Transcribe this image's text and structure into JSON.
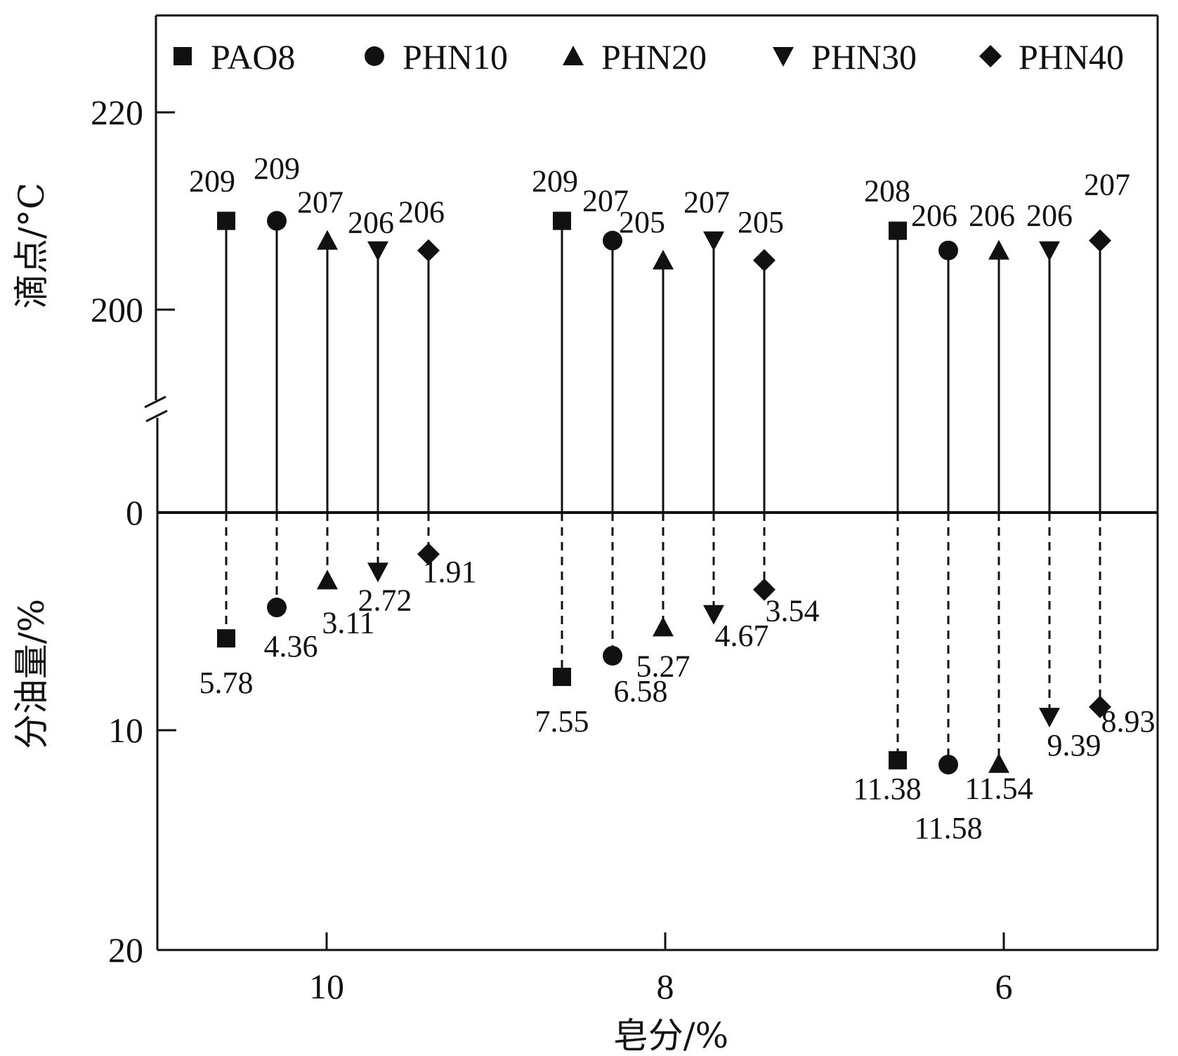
{
  "chart_data": {
    "type": "stem",
    "categories": [
      "10",
      "8",
      "6"
    ],
    "series": [
      {
        "name": "PAO8",
        "marker": "square",
        "dropping_point": [
          209,
          209,
          208
        ],
        "oil_separation": [
          5.78,
          7.55,
          11.38
        ]
      },
      {
        "name": "PHN10",
        "marker": "circle",
        "dropping_point": [
          209,
          207,
          206
        ],
        "oil_separation": [
          4.36,
          6.58,
          11.58
        ]
      },
      {
        "name": "PHN20",
        "marker": "triangle-up",
        "dropping_point": [
          207,
          205,
          206
        ],
        "oil_separation": [
          3.11,
          5.27,
          11.54
        ]
      },
      {
        "name": "PHN30",
        "marker": "triangle-down",
        "dropping_point": [
          206,
          207,
          206
        ],
        "oil_separation": [
          2.72,
          4.67,
          9.39
        ]
      },
      {
        "name": "PHN40",
        "marker": "diamond",
        "dropping_point": [
          206,
          205,
          207
        ],
        "oil_separation": [
          1.91,
          3.54,
          8.93
        ]
      }
    ],
    "dropping_point_labels": [
      [
        "209",
        "209",
        "208"
      ],
      [
        "209",
        "207",
        "206"
      ],
      [
        "207",
        "205",
        "206"
      ],
      [
        "206",
        "207",
        "206"
      ],
      [
        "206",
        "205",
        "207"
      ]
    ],
    "oil_separation_labels": [
      [
        "5.78",
        "7.55",
        "11.38"
      ],
      [
        "4.36",
        "6.58",
        "11.58"
      ],
      [
        "3.11",
        "5.27",
        "11.54"
      ],
      [
        "2.72",
        "4.67",
        "9.39"
      ],
      [
        "1.91",
        "3.54",
        "8.93"
      ]
    ],
    "xlabel": "皂分/%",
    "ylabel_upper": "滴点/°C",
    "ylabel_lower": "分油量/%",
    "upper_yticks": [
      "220",
      "200"
    ],
    "lower_yticks": [
      "0",
      "10",
      "20"
    ],
    "upper_ylim": [
      190,
      230
    ],
    "lower_ylim": [
      0,
      20
    ],
    "legend_position": "top",
    "grid": false,
    "line_color": "#111111"
  }
}
